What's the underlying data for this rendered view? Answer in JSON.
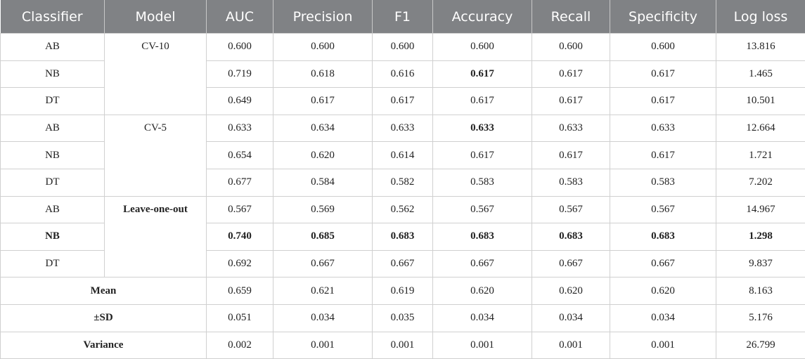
{
  "table": {
    "header": [
      "Classifier",
      "Model",
      "AUC",
      "Precision",
      "F1",
      "Accuracy",
      "Recall",
      "Specificity",
      "Log loss"
    ],
    "groups": [
      {
        "model": "CV-10",
        "rows": [
          {
            "classifier": "AB",
            "values": [
              "0.600",
              "0.600",
              "0.600",
              "0.600",
              "0.600",
              "0.600",
              "13.816"
            ]
          },
          {
            "classifier": "NB",
            "values": [
              "0.719",
              "0.618",
              "0.616",
              "0.617",
              "0.617",
              "0.617",
              "1.465"
            ]
          },
          {
            "classifier": "DT",
            "values": [
              "0.649",
              "0.617",
              "0.617",
              "0.617",
              "0.617",
              "0.617",
              "10.501"
            ]
          }
        ]
      },
      {
        "model": "CV-5",
        "rows": [
          {
            "classifier": "AB",
            "values": [
              "0.633",
              "0.634",
              "0.633",
              "0.633",
              "0.633",
              "0.633",
              "12.664"
            ]
          },
          {
            "classifier": "NB",
            "values": [
              "0.654",
              "0.620",
              "0.614",
              "0.617",
              "0.617",
              "0.617",
              "1.721"
            ]
          },
          {
            "classifier": "DT",
            "values": [
              "0.677",
              "0.584",
              "0.582",
              "0.583",
              "0.583",
              "0.583",
              "7.202"
            ]
          }
        ]
      },
      {
        "model": "Leave-one-out",
        "rows": [
          {
            "classifier": "AB",
            "values": [
              "0.567",
              "0.569",
              "0.562",
              "0.567",
              "0.567",
              "0.567",
              "14.967"
            ]
          },
          {
            "classifier": "NB",
            "values": [
              "0.740",
              "0.685",
              "0.683",
              "0.683",
              "0.683",
              "0.683",
              "1.298"
            ]
          },
          {
            "classifier": "DT",
            "values": [
              "0.692",
              "0.667",
              "0.667",
              "0.667",
              "0.667",
              "0.667",
              "9.837"
            ]
          }
        ]
      }
    ],
    "summary": [
      {
        "label": "Mean",
        "values": [
          "0.659",
          "0.621",
          "0.619",
          "0.620",
          "0.620",
          "0.620",
          "8.163"
        ]
      },
      {
        "label": "±SD",
        "values": [
          "0.051",
          "0.034",
          "0.035",
          "0.034",
          "0.034",
          "0.034",
          "5.176"
        ]
      },
      {
        "label": "Variance",
        "values": [
          "0.002",
          "0.001",
          "0.001",
          "0.001",
          "0.001",
          "0.001",
          "26.799"
        ]
      }
    ]
  }
}
